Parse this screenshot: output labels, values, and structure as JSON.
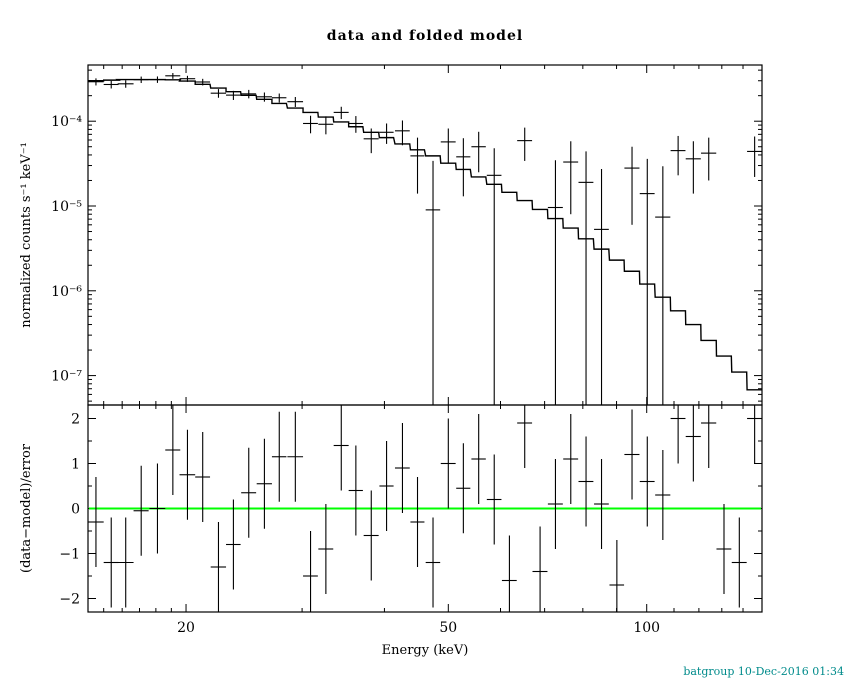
{
  "title": "data and folded model",
  "footer": "batgroup 10-Dec-2016 01:34",
  "colors": {
    "background": "#ffffff",
    "axis": "#000000",
    "model_line": "#000000",
    "data_marks": "#000000",
    "residual_zero_line": "#00ff00",
    "footer_text": "#008b8b"
  },
  "chart_data": {
    "type": "line",
    "title": "data and folded model",
    "xlabel": "Energy (keV)",
    "xscale": "log",
    "xlim": [
      14.2,
      149.6
    ],
    "x_ticks": [
      20,
      50,
      100
    ],
    "x_tick_labels": [
      "20",
      "50",
      "100"
    ],
    "x_minor_ticks": [
      15,
      16,
      17,
      18,
      19,
      30,
      40,
      60,
      70,
      80,
      90,
      110,
      120,
      130,
      140
    ],
    "energy_kev": [
      14.6,
      15.4,
      16.2,
      17.1,
      18.1,
      19.1,
      20.1,
      21.2,
      22.4,
      23.6,
      24.9,
      26.3,
      27.7,
      29.3,
      30.9,
      32.6,
      34.4,
      36.2,
      38.2,
      40.3,
      42.6,
      44.9,
      47.4,
      50.0,
      52.7,
      55.6,
      58.7,
      61.9,
      65.3,
      68.9,
      72.7,
      76.7,
      80.9,
      85.4,
      90.1,
      95.0,
      100.2,
      105.8,
      111.6,
      117.7,
      124.2,
      131.0,
      138.2,
      145.8
    ],
    "bin_halfwidth_kev": [
      0.4,
      0.4,
      0.45,
      0.45,
      0.5,
      0.5,
      0.55,
      0.55,
      0.6,
      0.6,
      0.65,
      0.7,
      0.7,
      0.8,
      0.8,
      0.85,
      0.9,
      0.9,
      1.0,
      1.0,
      1.1,
      1.1,
      1.2,
      1.3,
      1.3,
      1.4,
      1.5,
      1.6,
      1.7,
      1.8,
      1.9,
      2.0,
      2.1,
      2.2,
      2.3,
      2.5,
      2.6,
      2.8,
      2.9,
      3.1,
      3.3,
      3.4,
      3.6,
      3.8
    ],
    "panels": [
      {
        "name": "spectrum",
        "ylabel": "normalized counts s⁻¹ keV⁻¹",
        "yscale": "log",
        "ylim": [
          4.5e-08,
          0.00046
        ],
        "y_ticks": [
          0.0001,
          1e-05,
          1e-06,
          1e-07
        ],
        "y_tick_labels": [
          "10⁻⁴",
          "10⁻⁵",
          "10⁻⁶",
          "10⁻⁷"
        ],
        "data_counts": [
          0.000292,
          0.000271,
          0.000276,
          0.000309,
          0.00031,
          0.000343,
          0.000317,
          0.00029,
          0.000214,
          0.000203,
          0.00021,
          0.000194,
          0.000189,
          0.00017,
          9.4e-05,
          9.2e-05,
          0.000127,
          9.4e-05,
          6.2e-05,
          7.4e-05,
          7.7e-05,
          3.9e-05,
          9e-06,
          5.7e-05,
          3.8e-05,
          5e-05,
          2.3e-05,
          -2.6e-05,
          5.9e-05,
          -2.6e-05,
          9.6e-06,
          3.3e-05,
          1.9e-05,
          5.3e-06,
          -3.5e-05,
          2.8e-05,
          1.4e-05,
          7.4e-06,
          4.5e-05,
          3.6e-05,
          4.2e-05,
          -2e-05,
          -2.6e-05,
          4.4e-05
        ],
        "error_counts": [
          2.8e-05,
          2.8e-05,
          2.8e-05,
          2.7e-05,
          2.7e-05,
          2.7e-05,
          2.6e-05,
          2.6e-05,
          2.5e-05,
          2.5e-05,
          2.4e-05,
          2.4e-05,
          2.3e-05,
          2.3e-05,
          2.2e-05,
          2.2e-05,
          2.1e-05,
          2.1e-05,
          2e-05,
          2e-05,
          2.5e-05,
          2.5e-05,
          2.5e-05,
          2.5e-05,
          2.5e-05,
          2.5e-05,
          2.5e-05,
          2.5e-05,
          2.5e-05,
          2.5e-05,
          2.5e-05,
          2.5e-05,
          2.5e-05,
          2.2e-05,
          2.2e-05,
          2.2e-05,
          2.2e-05,
          2.2e-05,
          2.2e-05,
          2.2e-05,
          2.2e-05,
          2.2e-05,
          2.2e-05,
          2.2e-05
        ],
        "model_counts": [
          0.0003,
          0.000305,
          0.00031,
          0.00031,
          0.00031,
          0.000308,
          0.000297,
          0.000272,
          0.000246,
          0.000223,
          0.000202,
          0.000181,
          0.000162,
          0.000143,
          0.000127,
          0.000112,
          9.8e-05,
          8.6e-05,
          7.4e-05,
          6.4e-05,
          5.4e-05,
          4.6e-05,
          3.9e-05,
          3.2e-05,
          2.7e-05,
          2.2e-05,
          1.8e-05,
          1.45e-05,
          1.16e-05,
          9.1e-06,
          7.1e-06,
          5.5e-06,
          4.1e-06,
          3.1e-06,
          2.3e-06,
          1.7e-06,
          1.2e-06,
          8.4e-07,
          5.8e-07,
          4e-07,
          2.6e-07,
          1.7e-07,
          1.1e-07,
          6.8e-08
        ]
      },
      {
        "name": "residuals",
        "ylabel": "(data−model)/error",
        "yscale": "linear",
        "ylim": [
          -2.3,
          2.3
        ],
        "y_ticks": [
          -2,
          -1,
          0,
          1,
          2
        ],
        "y_tick_labels": [
          "−2",
          "−1",
          "0",
          "1",
          "2"
        ],
        "y_minor_ticks": [
          -1.5,
          -0.5,
          0.5,
          1.5
        ],
        "values": [
          -0.3,
          -1.2,
          -1.2,
          -0.05,
          0.0,
          1.3,
          0.75,
          0.7,
          -1.3,
          -0.8,
          0.35,
          0.55,
          1.15,
          1.15,
          -1.5,
          -0.9,
          1.4,
          0.4,
          -0.6,
          0.5,
          0.9,
          -0.3,
          -1.2,
          1.0,
          0.45,
          1.1,
          0.2,
          -1.6,
          1.9,
          -1.4,
          0.1,
          1.1,
          0.6,
          0.1,
          -1.7,
          1.2,
          0.6,
          0.3,
          2.0,
          1.6,
          1.9,
          -0.9,
          -1.2,
          2.0
        ],
        "error_sigma": 1
      }
    ]
  }
}
